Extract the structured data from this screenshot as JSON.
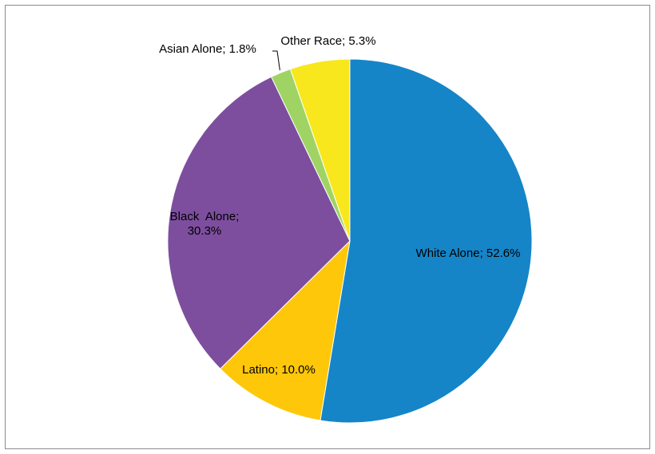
{
  "chart_data": {
    "type": "pie",
    "categories": [
      "White Alone",
      "Latino",
      "Black Alone",
      "Asian Alone",
      "Other Race"
    ],
    "values": [
      52.6,
      10.0,
      30.3,
      1.8,
      5.3
    ],
    "unit": "%",
    "colors": [
      "#1585c8",
      "#fec70a",
      "#7d4e9e",
      "#9fd464",
      "#f8e71c"
    ],
    "slice_edge_color": "#ffffff",
    "start": "12 o'clock, clockwise",
    "labels": [
      {
        "lines": [
          "White Alone; 52.6%"
        ]
      },
      {
        "lines": [
          "Latino; 10.0%"
        ]
      },
      {
        "lines": [
          "Black  Alone;",
          "30.3%"
        ]
      },
      {
        "lines": [
          "Asian Alone; 1.8%"
        ]
      },
      {
        "lines": [
          "Other Race; 5.3%"
        ]
      }
    ],
    "leader_line": "Asian Alone",
    "legend": "none",
    "title": ""
  }
}
